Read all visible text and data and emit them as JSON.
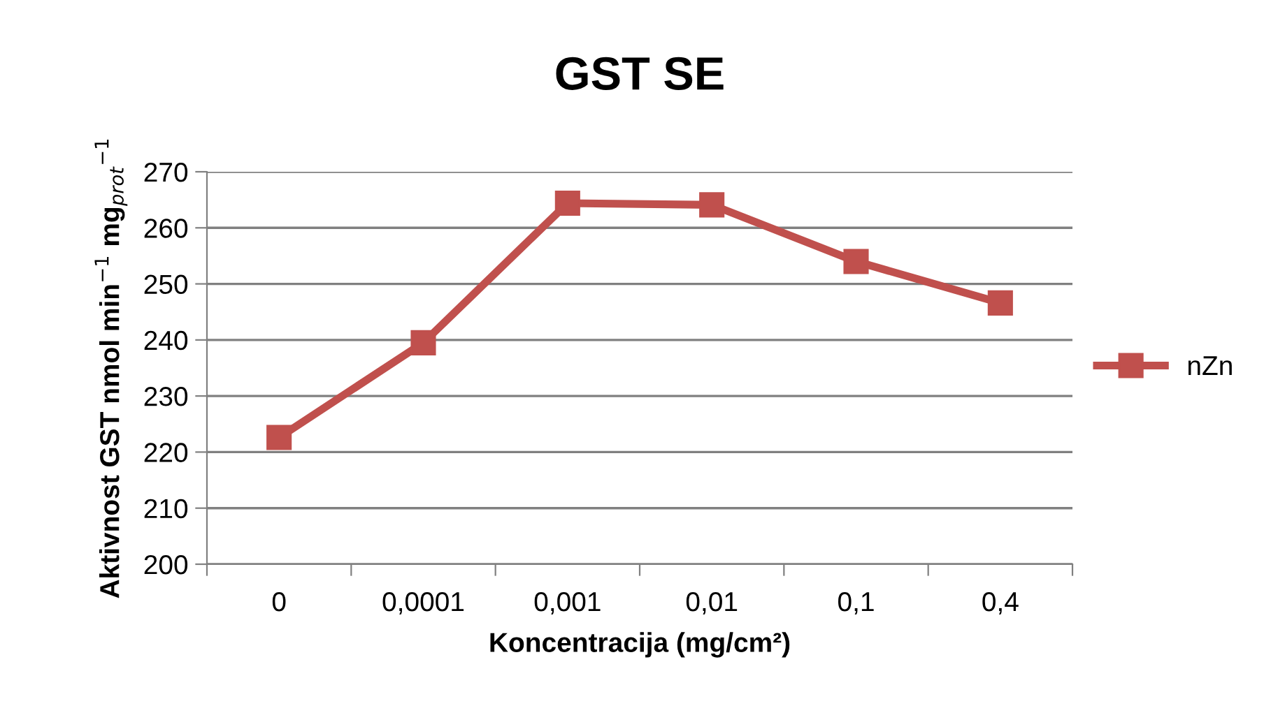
{
  "chart_data": {
    "type": "line",
    "title": "GST SE",
    "xlabel": "Koncentracija (mg/cm²)",
    "ylabel": "Aktivnost GST nmol min$^{−1}$ mg$_{prot}$$^{−1}$",
    "categories": [
      "0",
      "0,0001",
      "0,001",
      "0,01",
      "0,1",
      "0,4"
    ],
    "series": [
      {
        "name": "nZn",
        "color": "#c0504d",
        "values": [
          222.6,
          239.5,
          264.4,
          264.1,
          254.0,
          246.6
        ]
      }
    ],
    "ylim": [
      200,
      270
    ],
    "yticks": [
      200,
      210,
      220,
      230,
      240,
      250,
      260,
      270
    ],
    "grid": "y",
    "legend": "right",
    "marker": "square",
    "line_style": "solid"
  }
}
